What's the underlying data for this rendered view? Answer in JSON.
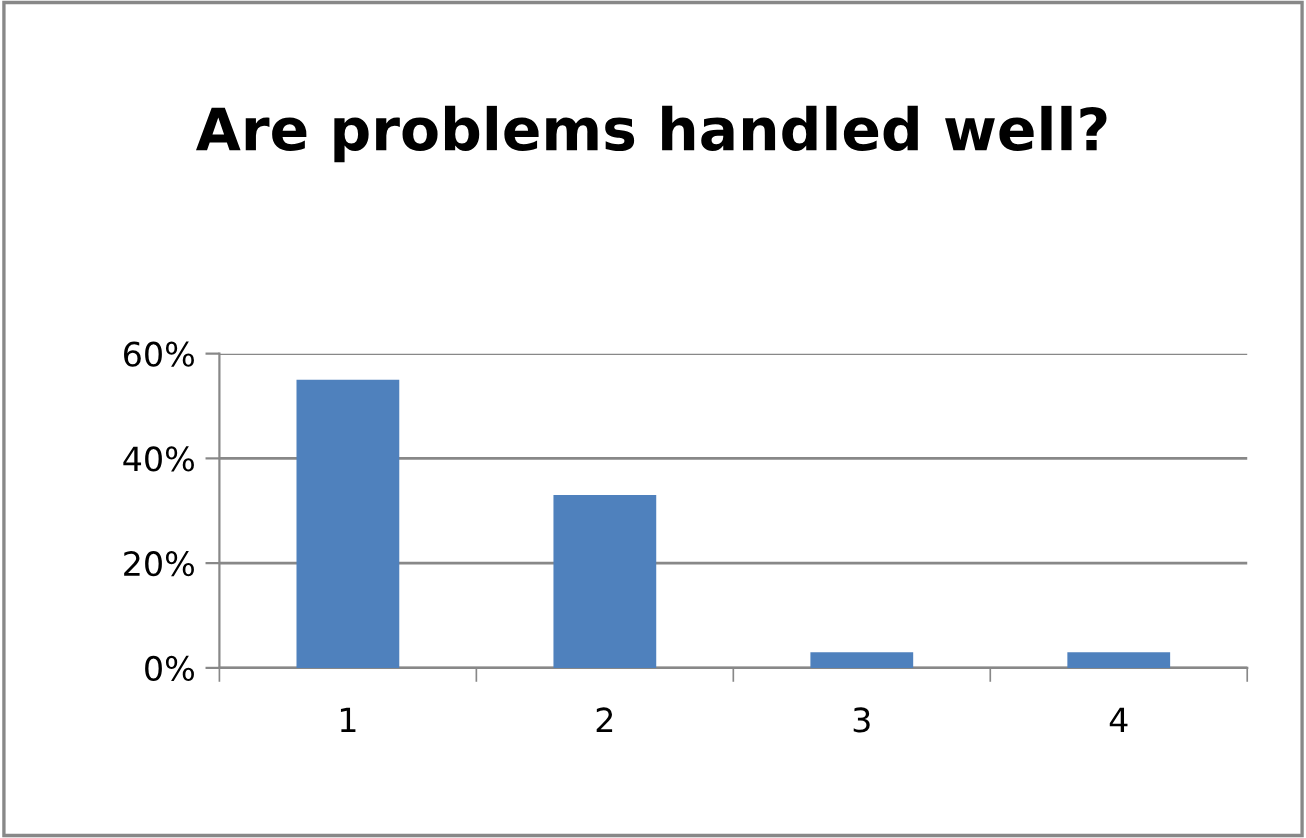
{
  "chart_data": {
    "type": "bar",
    "title": "Are problems handled well?",
    "categories": [
      "1",
      "2",
      "3",
      "4"
    ],
    "values": [
      55,
      33,
      3,
      3
    ],
    "color": "#4f81bd",
    "ylim": [
      0,
      60
    ],
    "yticks": [
      {
        "value": 0,
        "label": "0%"
      },
      {
        "value": 20,
        "label": "20%"
      },
      {
        "value": 40,
        "label": "40%"
      },
      {
        "value": 60,
        "label": "60%"
      }
    ],
    "grid": "y"
  }
}
